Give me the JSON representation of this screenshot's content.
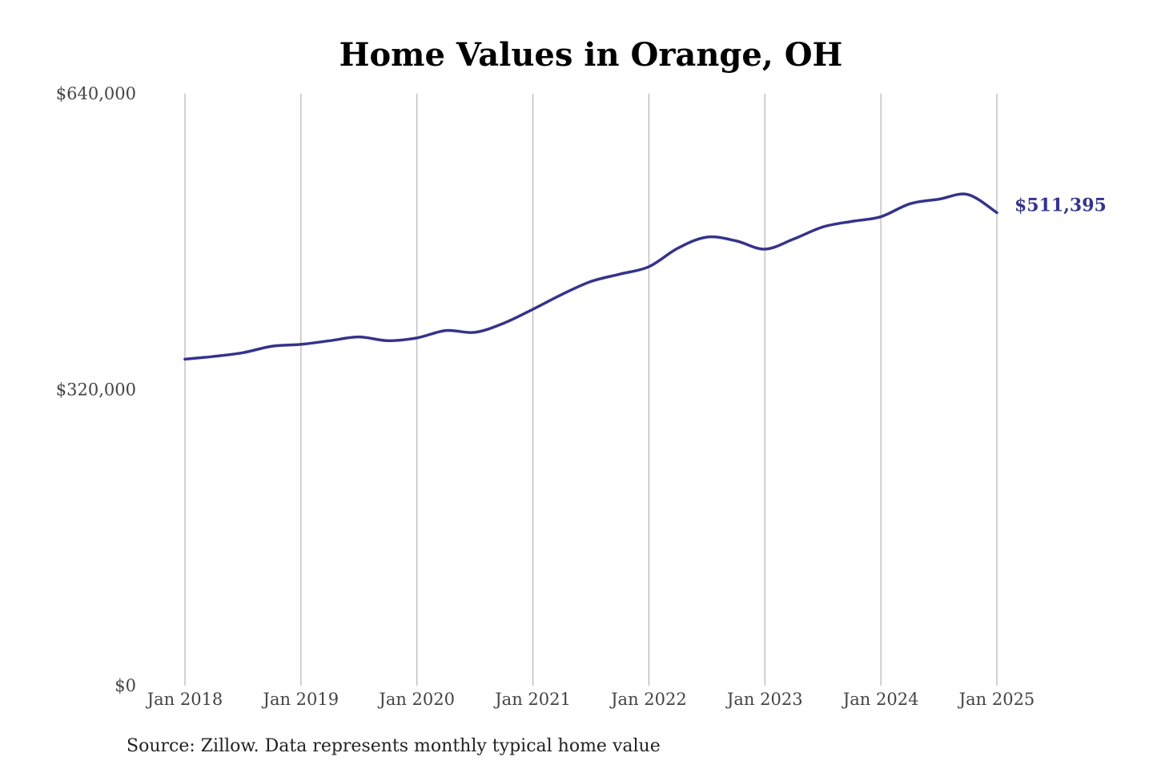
{
  "chart_data": {
    "type": "line",
    "title": "Home Values in Orange, OH",
    "source": "Source: Zillow. Data represents monthly typical home value",
    "end_label": "$511,395",
    "line_color": "#35338a",
    "ylim": [
      0,
      640000
    ],
    "y_ticks": [
      {
        "value": 0,
        "label": "$0"
      },
      {
        "value": 320000,
        "label": "$320,000"
      },
      {
        "value": 640000,
        "label": "$640,000"
      }
    ],
    "x_range": [
      2018.0,
      2025.0
    ],
    "x_ticks": [
      {
        "x": 2018,
        "label": "Jan 2018"
      },
      {
        "x": 2019,
        "label": "Jan 2019"
      },
      {
        "x": 2020,
        "label": "Jan 2020"
      },
      {
        "x": 2021,
        "label": "Jan 2021"
      },
      {
        "x": 2022,
        "label": "Jan 2022"
      },
      {
        "x": 2023,
        "label": "Jan 2023"
      },
      {
        "x": 2024,
        "label": "Jan 2024"
      },
      {
        "x": 2025,
        "label": "Jan 2025"
      }
    ],
    "grid": "vertical",
    "series": [
      {
        "x": [
          "2018-01",
          "2018-04",
          "2018-07",
          "2018-10",
          "2019-01",
          "2019-04",
          "2019-07",
          "2019-10",
          "2020-01",
          "2020-04",
          "2020-07",
          "2020-10",
          "2021-01",
          "2021-04",
          "2021-07",
          "2021-10",
          "2022-01",
          "2022-04",
          "2022-07",
          "2022-10",
          "2023-01",
          "2023-04",
          "2023-07",
          "2023-10",
          "2024-01",
          "2024-04",
          "2024-07",
          "2024-10",
          "2025-01"
        ],
        "values": [
          353000,
          356000,
          360000,
          367000,
          369000,
          373000,
          377000,
          373000,
          376000,
          384000,
          382000,
          392000,
          407000,
          423000,
          437000,
          445000,
          453000,
          473000,
          485000,
          481000,
          472000,
          483000,
          496000,
          502000,
          507000,
          521000,
          526000,
          531000,
          511395
        ]
      }
    ]
  }
}
